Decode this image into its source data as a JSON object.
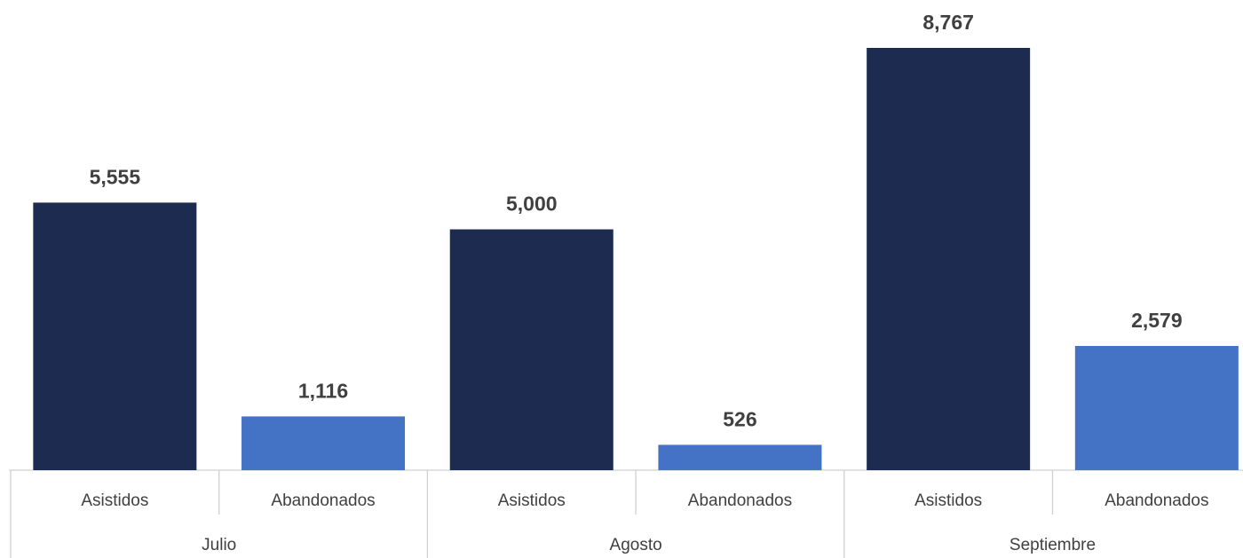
{
  "chart_data": {
    "type": "bar",
    "groups": [
      {
        "name": "Julio",
        "bars": [
          {
            "label": "Asistidos",
            "value": 5555,
            "value_label": "5,555",
            "color": "#1c2b4f"
          },
          {
            "label": "Abandonados",
            "value": 1116,
            "value_label": "1,116",
            "color": "#4472c4"
          }
        ]
      },
      {
        "name": "Agosto",
        "bars": [
          {
            "label": "Asistidos",
            "value": 5000,
            "value_label": "5,000",
            "color": "#1c2b4f"
          },
          {
            "label": "Abandonados",
            "value": 526,
            "value_label": "526",
            "color": "#4472c4"
          }
        ]
      },
      {
        "name": "Septiembre",
        "bars": [
          {
            "label": "Asistidos",
            "value": 8767,
            "value_label": "8,767",
            "color": "#1c2b4f"
          },
          {
            "label": "Abandonados",
            "value": 2579,
            "value_label": "2,579",
            "color": "#4472c4"
          }
        ]
      }
    ]
  }
}
